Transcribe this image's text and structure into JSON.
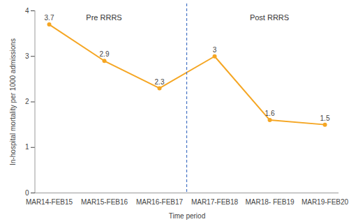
{
  "chart_data": {
    "type": "line",
    "x_label": "Time period",
    "y_label": "In-hospital mortality per 1000 admissions",
    "categories": [
      "MAR14-FEB15",
      "MAR15-FEB16",
      "MAR16-FEB17",
      "MAR17-FEB18",
      "MAR18- FEB19",
      "MAR19-FEB20"
    ],
    "values": [
      3.7,
      2.9,
      2.3,
      3,
      1.6,
      1.5
    ],
    "color": "#f5a623",
    "marker": "circle",
    "data_labels": true,
    "grid": false,
    "ylim": [
      0,
      4
    ],
    "yticks": [
      0,
      1,
      2,
      3,
      4
    ],
    "annotations": [
      {
        "text": "Pre RRRS",
        "categories": [
          "MAR14-FEB15",
          "MAR15-FEB16",
          "MAR16-FEB17"
        ]
      },
      {
        "text": "Post RRRS",
        "categories": [
          "MAR17-FEB18",
          "MAR18- FEB19",
          "MAR19-FEB20"
        ]
      }
    ]
  }
}
